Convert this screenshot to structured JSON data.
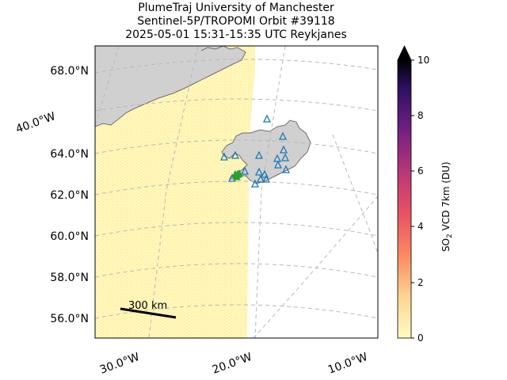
{
  "title": {
    "line1": "PlumeTraj    University of Manchester",
    "line2": "Sentinel-5P/TROPOMI Orbit #39118",
    "line3": "2025-05-01   15:31-15:35 UTC   Reykjanes"
  },
  "lat_labels": [
    "68.0°N",
    "64.0°N",
    "62.0°N",
    "60.0°N",
    "58.0°N",
    "56.0°N"
  ],
  "lon_labels": {
    "left_40": "40.0°W",
    "bottom": [
      "30.0°W",
      "20.0°W",
      "10.0°W"
    ]
  },
  "scale_bar": {
    "label": "300 km"
  },
  "colorbar": {
    "label_prefix": "SO",
    "label_sub": "2",
    "label_suffix": " VCD 7km (DU)",
    "ticks": [
      "0",
      "2",
      "4",
      "6",
      "8",
      "10"
    ],
    "min": 0,
    "max": 10,
    "extend": "max"
  },
  "colors": {
    "swath": "#fff7b8",
    "land": "#d0d0d0",
    "coast": "#707070",
    "graticule": "#b8b8b8",
    "volcano_marker": "#1f77b4",
    "source_marker": "#2ca02c"
  },
  "legend_icons": {
    "volcano": "triangle-icon",
    "source": "triangle-icon"
  }
}
